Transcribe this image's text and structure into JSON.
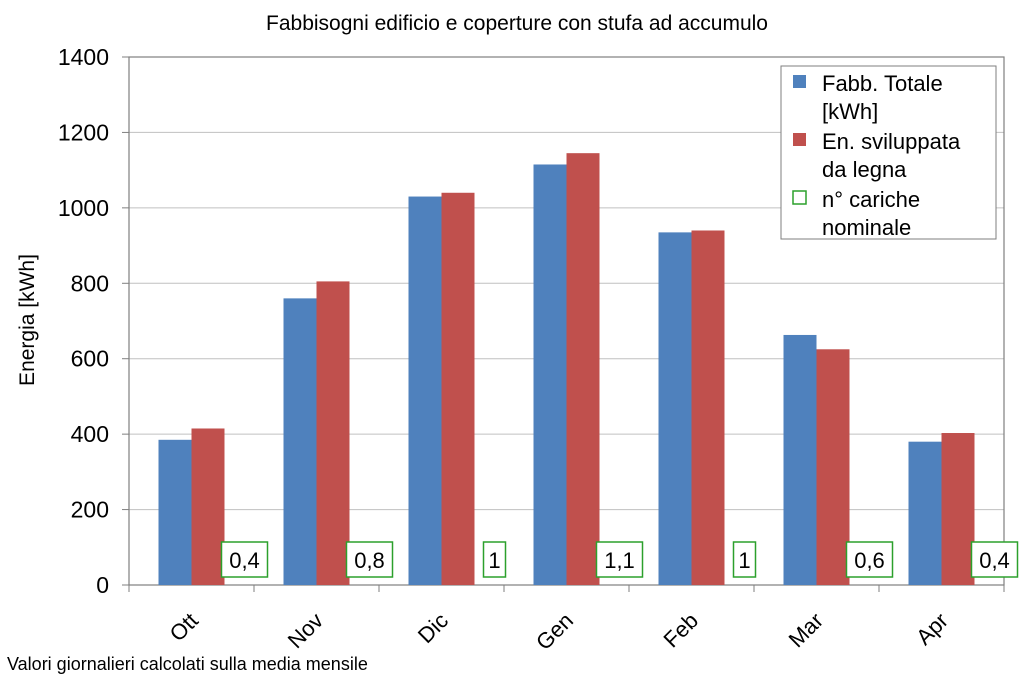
{
  "chart_data": {
    "type": "bar",
    "title": "Fabbisogni edificio e coperture con stufa ad accumulo",
    "ylabel": "Energia [kWh]",
    "xlabel": "",
    "ylim": [
      0,
      1400
    ],
    "yticks": [
      0,
      200,
      400,
      600,
      800,
      1000,
      1200,
      1400
    ],
    "grid": "horizontal",
    "legend_position": "top-right",
    "categories": [
      "Ott",
      "Nov",
      "Dic",
      "Gen",
      "Feb",
      "Mar",
      "Apr"
    ],
    "series": [
      {
        "name": "Fabb. Totale [kWh]",
        "legend_lines": [
          "Fabb. Totale",
          "[kWh]"
        ],
        "color": "#4f81bd",
        "values": [
          385,
          760,
          1030,
          1115,
          935,
          663,
          380
        ]
      },
      {
        "name": "En. sviluppata da legna",
        "legend_lines": [
          "En. sviluppata",
          "da legna"
        ],
        "color": "#c0504d",
        "values": [
          415,
          805,
          1040,
          1145,
          940,
          625,
          403
        ]
      }
    ],
    "annotation_series": {
      "name": "n° cariche nominale",
      "legend_lines": [
        "n° cariche",
        "nominale"
      ],
      "color": "#2ca02c",
      "labels": [
        "0,4",
        "0,8",
        "1",
        "1,1",
        "1",
        "0,6",
        "0,4"
      ]
    },
    "footnote": "Valori giornalieri calcolati sulla media mensile"
  }
}
